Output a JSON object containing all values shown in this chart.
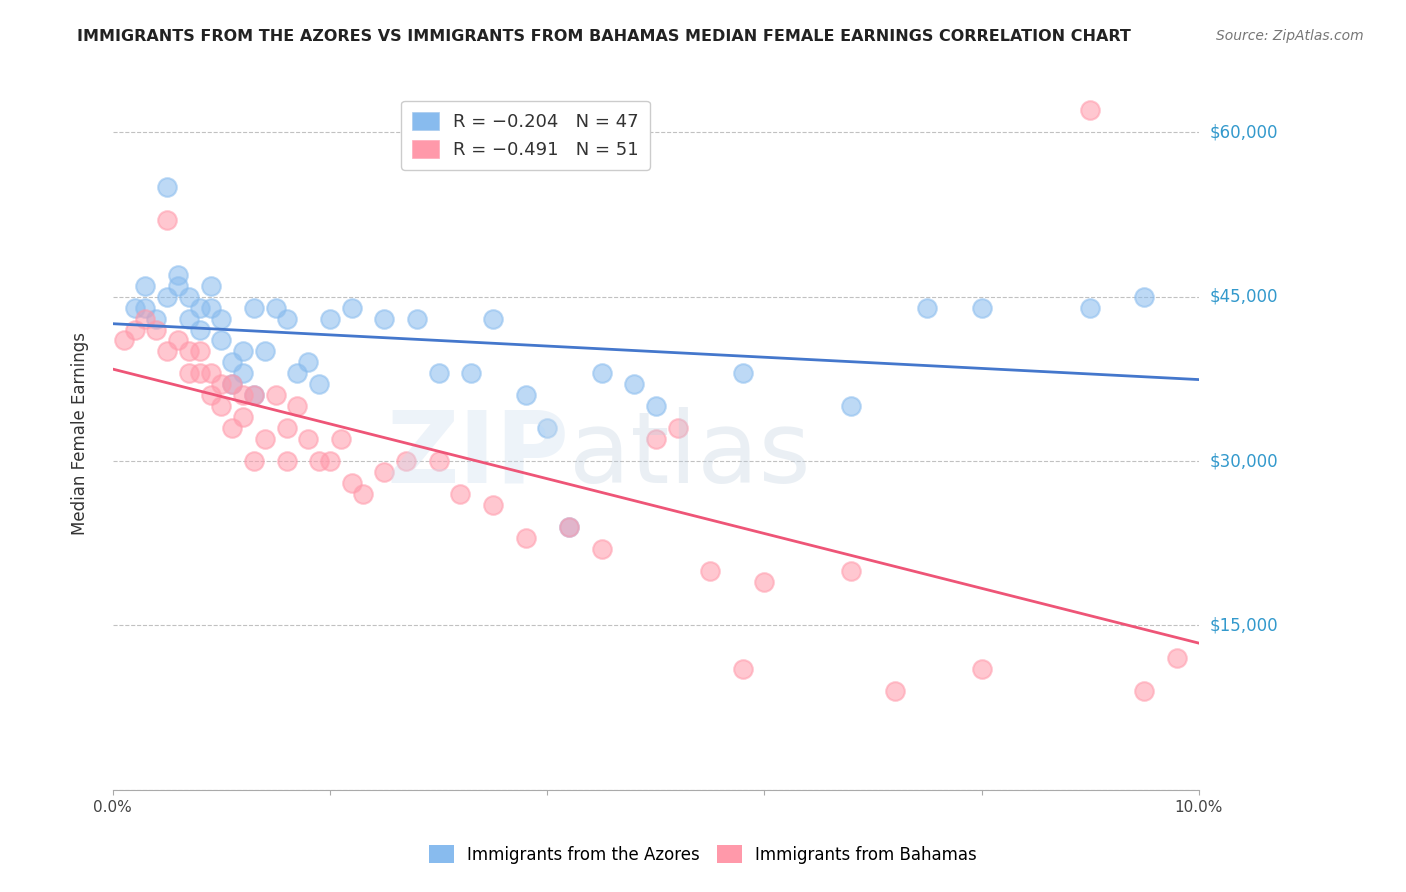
{
  "title": "IMMIGRANTS FROM THE AZORES VS IMMIGRANTS FROM BAHAMAS MEDIAN FEMALE EARNINGS CORRELATION CHART",
  "source": "Source: ZipAtlas.com",
  "ylabel": "Median Female Earnings",
  "yticks": [
    0,
    15000,
    30000,
    45000,
    60000
  ],
  "ytick_labels": [
    "",
    "$15,000",
    "$30,000",
    "$45,000",
    "$60,000"
  ],
  "xlim": [
    0.0,
    0.1
  ],
  "ylim": [
    0,
    65000
  ],
  "color_azores": "#88BBEE",
  "color_bahamas": "#FF99AA",
  "color_line_azores": "#4477CC",
  "color_line_bahamas": "#EE5577",
  "color_ytick_labels": "#3399CC",
  "azores_x": [
    0.002,
    0.003,
    0.003,
    0.004,
    0.005,
    0.005,
    0.006,
    0.006,
    0.007,
    0.007,
    0.008,
    0.008,
    0.009,
    0.009,
    0.01,
    0.01,
    0.011,
    0.011,
    0.012,
    0.012,
    0.013,
    0.013,
    0.014,
    0.015,
    0.016,
    0.017,
    0.018,
    0.019,
    0.02,
    0.022,
    0.025,
    0.028,
    0.03,
    0.033,
    0.035,
    0.038,
    0.04,
    0.042,
    0.045,
    0.048,
    0.05,
    0.058,
    0.068,
    0.075,
    0.08,
    0.09,
    0.095
  ],
  "azores_y": [
    44000,
    46000,
    44000,
    43000,
    55000,
    45000,
    47000,
    46000,
    45000,
    43000,
    44000,
    42000,
    46000,
    44000,
    43000,
    41000,
    39000,
    37000,
    40000,
    38000,
    44000,
    36000,
    40000,
    44000,
    43000,
    38000,
    39000,
    37000,
    43000,
    44000,
    43000,
    43000,
    38000,
    38000,
    43000,
    36000,
    33000,
    24000,
    38000,
    37000,
    35000,
    38000,
    35000,
    44000,
    44000,
    44000,
    45000
  ],
  "bahamas_x": [
    0.001,
    0.002,
    0.003,
    0.004,
    0.005,
    0.005,
    0.006,
    0.007,
    0.007,
    0.008,
    0.008,
    0.009,
    0.009,
    0.01,
    0.01,
    0.011,
    0.011,
    0.012,
    0.012,
    0.013,
    0.013,
    0.014,
    0.015,
    0.016,
    0.016,
    0.017,
    0.018,
    0.019,
    0.02,
    0.021,
    0.022,
    0.023,
    0.025,
    0.027,
    0.03,
    0.032,
    0.035,
    0.038,
    0.042,
    0.045,
    0.05,
    0.052,
    0.055,
    0.058,
    0.06,
    0.068,
    0.072,
    0.08,
    0.09,
    0.095,
    0.098
  ],
  "bahamas_y": [
    41000,
    42000,
    43000,
    42000,
    52000,
    40000,
    41000,
    40000,
    38000,
    40000,
    38000,
    38000,
    36000,
    37000,
    35000,
    37000,
    33000,
    36000,
    34000,
    36000,
    30000,
    32000,
    36000,
    33000,
    30000,
    35000,
    32000,
    30000,
    30000,
    32000,
    28000,
    27000,
    29000,
    30000,
    30000,
    27000,
    26000,
    23000,
    24000,
    22000,
    32000,
    33000,
    20000,
    11000,
    19000,
    20000,
    9000,
    11000,
    62000,
    9000,
    12000
  ]
}
